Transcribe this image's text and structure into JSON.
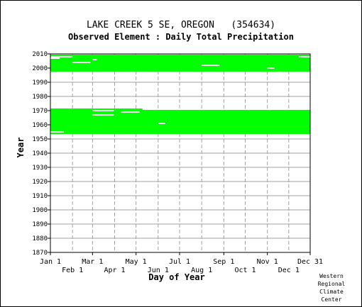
{
  "station_title": "LAKE CREEK 5 SE, OREGON   (354634)",
  "element_title": "Observed Element : Daily Total Precipitation",
  "credit": [
    "Western",
    "Regional",
    "Climate",
    "Center"
  ],
  "colors": {
    "data": "#00ff00",
    "grid": "#a0a0a0",
    "axis": "#000000"
  },
  "chart_data": {
    "type": "heatmap",
    "xlabel": "Day of Year",
    "ylabel": "Year",
    "xlim": [
      1,
      365
    ],
    "ylim": [
      1870,
      2010
    ],
    "x_ticks_upper": [
      {
        "label": "Jan 1",
        "day": 1
      },
      {
        "label": "Mar 1",
        "day": 60
      },
      {
        "label": "May 1",
        "day": 121
      },
      {
        "label": "Jul 1",
        "day": 182
      },
      {
        "label": "Sep 1",
        "day": 244
      },
      {
        "label": "Nov 1",
        "day": 305
      },
      {
        "label": "Dec 31",
        "day": 365
      }
    ],
    "x_ticks_lower": [
      {
        "label": "Feb 1",
        "day": 32
      },
      {
        "label": "Apr 1",
        "day": 91
      },
      {
        "label": "Jun 1",
        "day": 152
      },
      {
        "label": "Aug 1",
        "day": 213
      },
      {
        "label": "Oct 1",
        "day": 274
      },
      {
        "label": "Dec 1",
        "day": 335
      }
    ],
    "y_ticks": [
      "1870",
      "1880",
      "1890",
      "1900",
      "1910",
      "1920",
      "1930",
      "1940",
      "1950",
      "1960",
      "1970",
      "1980",
      "1990",
      "2000",
      "2010"
    ],
    "grid": true,
    "data_periods": [
      {
        "start_year": 1954,
        "end_year": 1971
      },
      {
        "start_year": 1998,
        "end_year": 2009
      }
    ],
    "missing_segments": [
      {
        "year": 1955,
        "start_day": 1,
        "end_day": 20
      },
      {
        "year": 1970,
        "start_day": 60,
        "end_day": 90
      },
      {
        "year": 1967,
        "start_day": 60,
        "end_day": 90
      },
      {
        "year": 1961,
        "start_day": 152,
        "end_day": 162
      },
      {
        "year": 1969,
        "start_day": 100,
        "end_day": 126
      },
      {
        "year": 1971,
        "start_day": 130,
        "end_day": 365
      },
      {
        "year": 2004,
        "start_day": 32,
        "end_day": 57
      },
      {
        "year": 2002,
        "start_day": 213,
        "end_day": 238
      },
      {
        "year": 2000,
        "start_day": 305,
        "end_day": 315
      },
      {
        "year": 2008,
        "start_day": 2,
        "end_day": 32
      },
      {
        "year": 2007,
        "start_day": 1,
        "end_day": 14
      },
      {
        "year": 2006,
        "start_day": 60,
        "end_day": 66
      },
      {
        "year": 2008,
        "start_day": 349,
        "end_day": 365
      }
    ]
  }
}
